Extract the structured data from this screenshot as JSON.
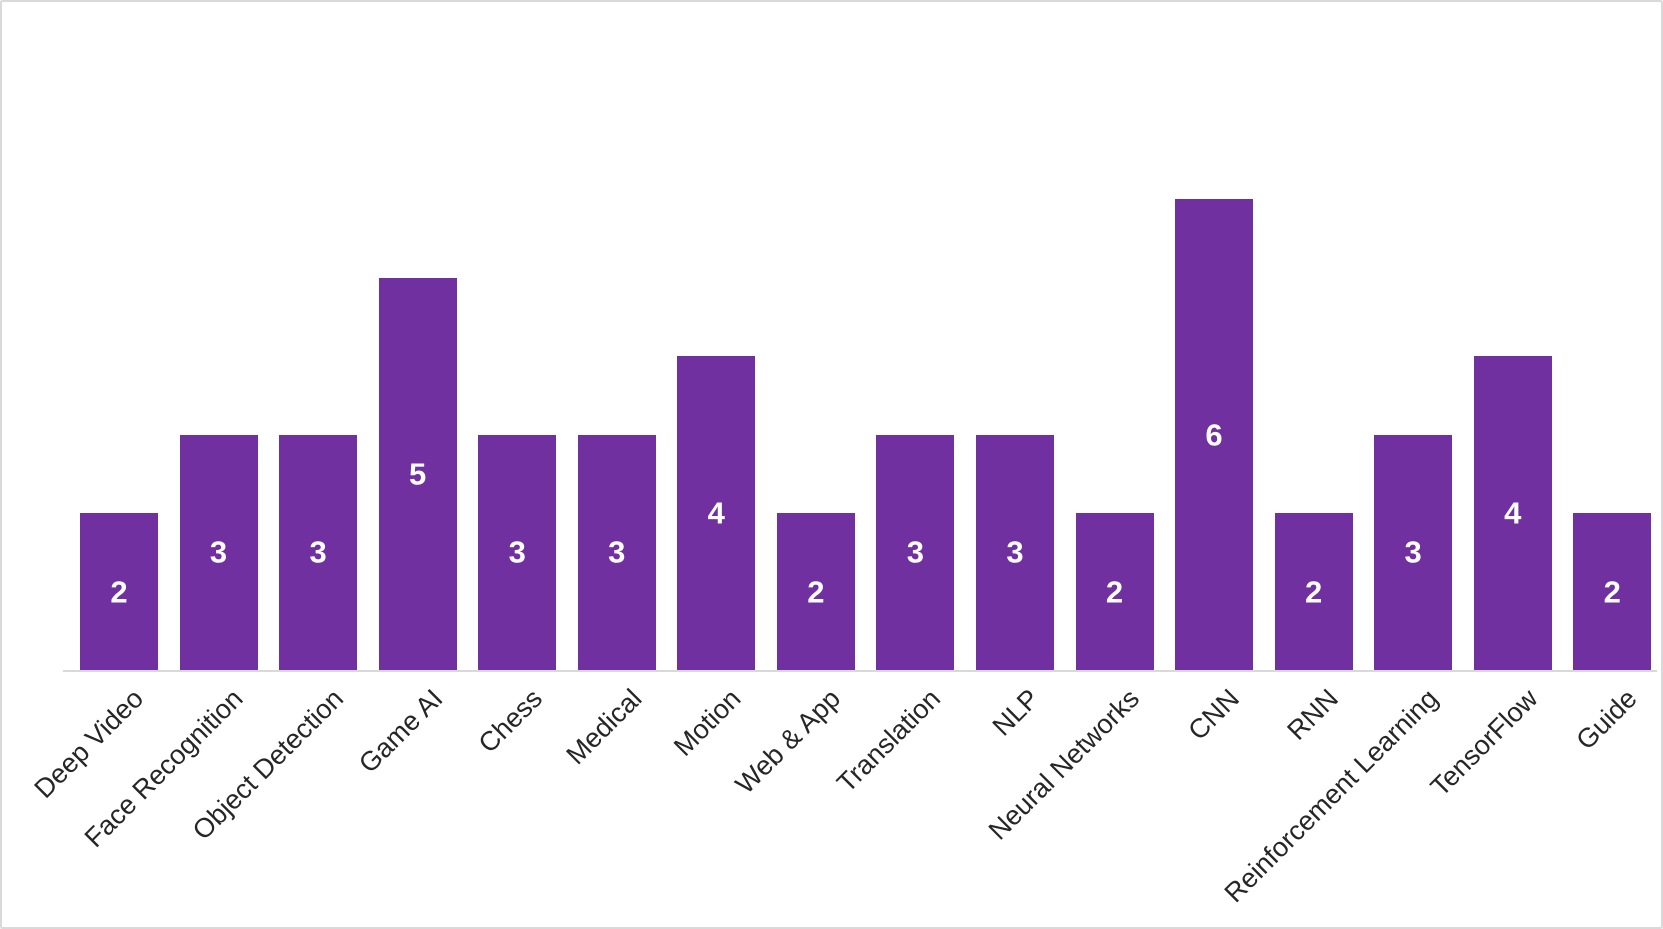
{
  "chart_data": {
    "type": "bar",
    "title": "",
    "xlabel": "",
    "ylabel": "",
    "categories": [
      "Deep Video",
      "Face Recognition",
      "Object Detection",
      "Game AI",
      "Chess",
      "Medical",
      "Motion",
      "Web & App",
      "Translation",
      "NLP",
      "Neural Networks",
      "CNN",
      "RNN",
      "Reinforcement Learning",
      "TensorFlow",
      "Guide"
    ],
    "values": [
      2,
      3,
      3,
      5,
      3,
      3,
      4,
      2,
      3,
      3,
      2,
      6,
      2,
      3,
      4,
      2
    ],
    "ylim": [
      0,
      6
    ],
    "grid": false,
    "legend": false,
    "y_axis_visible": false,
    "data_labels_position": "inside-center",
    "x_tick_rotation_deg": 45,
    "colors": {
      "bar": "#7030A0",
      "data_label": "#FFFFFF",
      "axis_line": "#D9D9D9",
      "category_text": "#262626",
      "frame_border": "#D9D9D9",
      "background": "#FFFFFF"
    }
  }
}
